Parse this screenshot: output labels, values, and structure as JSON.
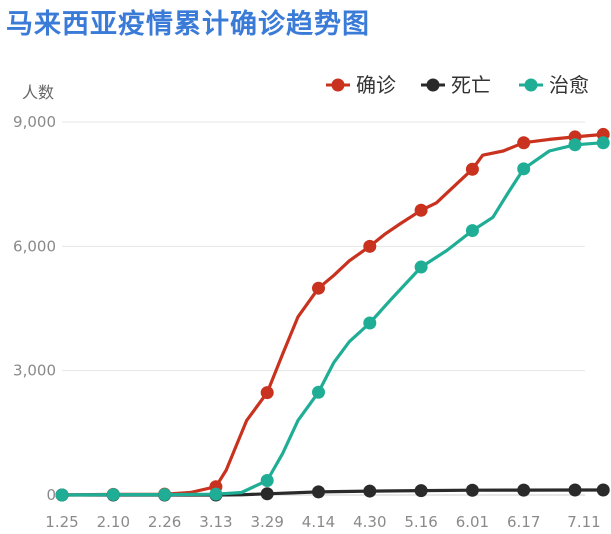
{
  "chart_data": {
    "type": "line",
    "title": "马来西亚疫情累计确诊趋势图",
    "ylabel": "人数",
    "xlabel": "",
    "x_ticks": [
      "1.25",
      "2.10",
      "2.26",
      "3.13",
      "3.29",
      "4.14",
      "4.30",
      "5.16",
      "6.01",
      "6.17",
      "7.11"
    ],
    "y_ticks": [
      "0",
      "3,000",
      "6,000",
      "9,000"
    ],
    "ylim": [
      0,
      9000
    ],
    "grid": "horizontal",
    "legend_position": "top-right",
    "series": [
      {
        "name": "确诊",
        "color": "#c8321e",
        "markers": [
          [
            0,
            0
          ],
          [
            1,
            15
          ],
          [
            2,
            20
          ],
          [
            3,
            200
          ],
          [
            4,
            2470
          ],
          [
            5,
            4990
          ],
          [
            6,
            6000
          ],
          [
            7,
            6870
          ],
          [
            8,
            7860
          ],
          [
            9,
            8500
          ],
          [
            10,
            8640
          ],
          [
            10.55,
            8700
          ]
        ],
        "line": [
          [
            0,
            0
          ],
          [
            1,
            15
          ],
          [
            2,
            20
          ],
          [
            2.5,
            60
          ],
          [
            3,
            200
          ],
          [
            3.2,
            600
          ],
          [
            3.4,
            1200
          ],
          [
            3.6,
            1800
          ],
          [
            4,
            2470
          ],
          [
            4.3,
            3400
          ],
          [
            4.6,
            4300
          ],
          [
            5,
            4990
          ],
          [
            5.3,
            5300
          ],
          [
            5.6,
            5650
          ],
          [
            6,
            6000
          ],
          [
            6.3,
            6300
          ],
          [
            6.6,
            6550
          ],
          [
            7,
            6870
          ],
          [
            7.3,
            7050
          ],
          [
            7.6,
            7400
          ],
          [
            8,
            7860
          ],
          [
            8.2,
            8200
          ],
          [
            8.6,
            8300
          ],
          [
            9,
            8500
          ],
          [
            9.5,
            8580
          ],
          [
            10,
            8640
          ],
          [
            10.55,
            8700
          ]
        ]
      },
      {
        "name": "死亡",
        "color": "#2a2a2a",
        "markers": [
          [
            0,
            0
          ],
          [
            1,
            0
          ],
          [
            2,
            0
          ],
          [
            3,
            0
          ],
          [
            4,
            30
          ],
          [
            5,
            75
          ],
          [
            6,
            95
          ],
          [
            7,
            105
          ],
          [
            8,
            115
          ],
          [
            9,
            118
          ],
          [
            10,
            120
          ],
          [
            10.55,
            121
          ]
        ],
        "line": [
          [
            0,
            0
          ],
          [
            1,
            0
          ],
          [
            2,
            0
          ],
          [
            3,
            0
          ],
          [
            3.5,
            5
          ],
          [
            4,
            30
          ],
          [
            5,
            75
          ],
          [
            6,
            95
          ],
          [
            7,
            105
          ],
          [
            8,
            115
          ],
          [
            9,
            118
          ],
          [
            10,
            120
          ],
          [
            10.55,
            121
          ]
        ]
      },
      {
        "name": "治愈",
        "color": "#1fae95",
        "markers": [
          [
            0,
            0
          ],
          [
            1,
            10
          ],
          [
            2,
            10
          ],
          [
            3,
            20
          ],
          [
            4,
            350
          ],
          [
            5,
            2480
          ],
          [
            6,
            4150
          ],
          [
            7,
            5500
          ],
          [
            8,
            6380
          ],
          [
            9,
            7870
          ],
          [
            10,
            8450
          ],
          [
            10.55,
            8500
          ]
        ],
        "line": [
          [
            0,
            0
          ],
          [
            1,
            10
          ],
          [
            2,
            10
          ],
          [
            3,
            20
          ],
          [
            3.5,
            60
          ],
          [
            4,
            350
          ],
          [
            4.3,
            1000
          ],
          [
            4.6,
            1800
          ],
          [
            5,
            2480
          ],
          [
            5.3,
            3200
          ],
          [
            5.6,
            3700
          ],
          [
            6,
            4150
          ],
          [
            6.4,
            4700
          ],
          [
            7,
            5500
          ],
          [
            7.5,
            5900
          ],
          [
            8,
            6380
          ],
          [
            8.4,
            6700
          ],
          [
            8.7,
            7300
          ],
          [
            9,
            7870
          ],
          [
            9.5,
            8300
          ],
          [
            10,
            8450
          ],
          [
            10.55,
            8500
          ]
        ]
      }
    ]
  }
}
